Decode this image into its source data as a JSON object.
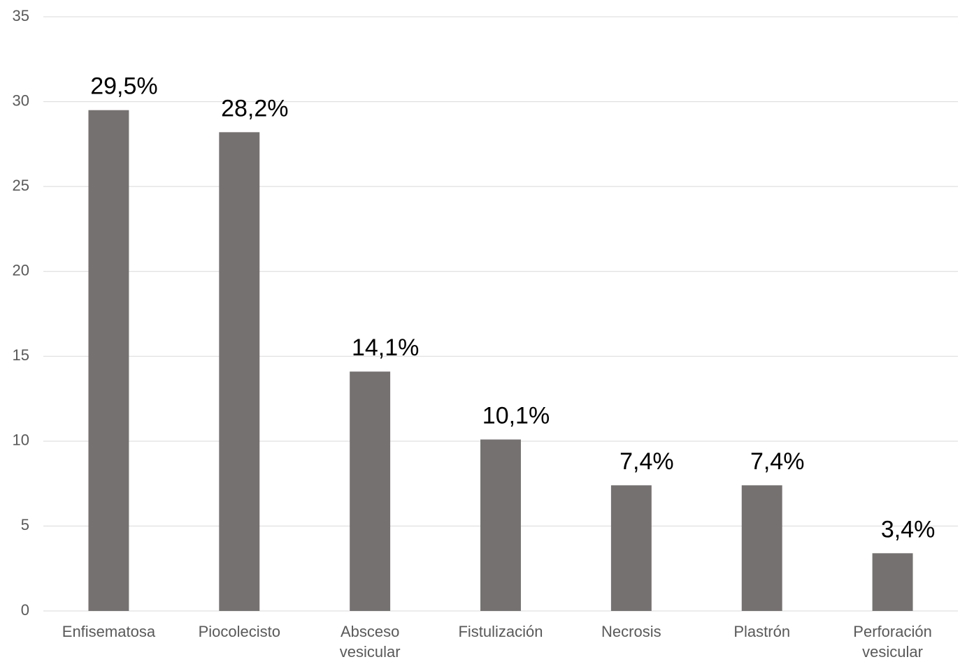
{
  "chart_data": {
    "type": "bar",
    "categories": [
      "Enfisematosa",
      "Piocolecisto",
      "Absceso vesicular",
      "Fistulización",
      "Necrosis",
      "Plastrón",
      "Perforación vesicular"
    ],
    "values": [
      29.5,
      28.2,
      14.1,
      10.1,
      7.4,
      7.4,
      3.4
    ],
    "value_labels": [
      "29,5%",
      "28,2%",
      "14,1%",
      "10,1%",
      "7,4%",
      "7,4%",
      "3,4%"
    ],
    "color": "#767171",
    "ylim": [
      0,
      35
    ],
    "yticks": [
      0,
      5,
      10,
      15,
      20,
      25,
      30,
      35
    ],
    "grid": true
  }
}
